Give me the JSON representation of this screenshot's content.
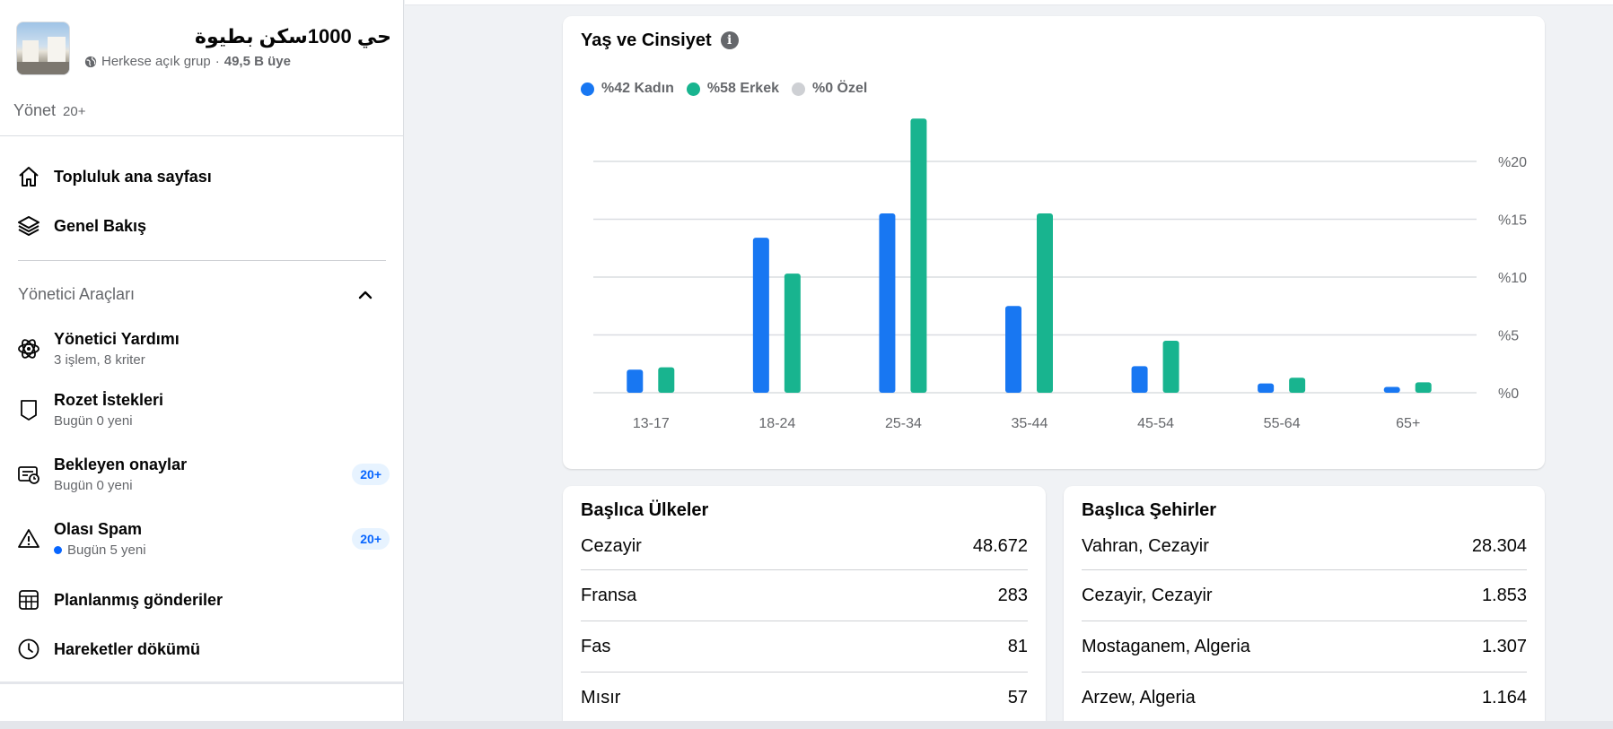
{
  "group": {
    "name": "حي 1000سكن بطيوة",
    "privacy": "Herkese açık grup",
    "separator": "·",
    "members": "49,5 B üye"
  },
  "manage": {
    "label": "Yönet",
    "count": "20+"
  },
  "nav": {
    "community_home": "Topluluk ana sayfası",
    "overview": "Genel Bakış"
  },
  "admin_tools": {
    "title": "Yönetici Araçları",
    "items": [
      {
        "label": "Yönetici Yardımı",
        "sub": "3 işlem, 8 kriter",
        "icon": "atom-icon"
      },
      {
        "label": "Rozet İstekleri",
        "sub": "Bugün 0 yeni",
        "icon": "badge-icon"
      },
      {
        "label": "Bekleyen onaylar",
        "sub": "Bugün 0 yeni",
        "badge": "20+",
        "icon": "pending-approvals-icon"
      },
      {
        "label": "Olası Spam",
        "sub": "Bugün 5 yeni",
        "badge": "20+",
        "icon": "warning-icon"
      },
      {
        "label": "Planlanmış gönderiler",
        "icon": "calendar-icon"
      },
      {
        "label": "Hareketler dökümü",
        "icon": "clock-icon"
      }
    ]
  },
  "age_gender": {
    "title": "Yaş ve Cinsiyet",
    "legend": [
      {
        "label": "%42 Kadın",
        "color": "#1877f2"
      },
      {
        "label": "%58 Erkek",
        "color": "#18b48f"
      },
      {
        "label": "%0 Özel",
        "color": "#ced0d4"
      }
    ]
  },
  "chart_data": {
    "type": "bar",
    "title": "Yaş ve Cinsiyet",
    "categories": [
      "13-17",
      "18-24",
      "25-34",
      "35-44",
      "45-54",
      "55-64",
      "65+"
    ],
    "series": [
      {
        "name": "%42 Kadın",
        "color": "#1877f2",
        "values": [
          2.0,
          13.4,
          15.5,
          7.5,
          2.3,
          0.8,
          0.5
        ]
      },
      {
        "name": "%58 Erkek",
        "color": "#18b48f",
        "values": [
          2.2,
          10.3,
          23.7,
          15.5,
          4.5,
          1.3,
          0.9
        ]
      }
    ],
    "y_ticks": [
      "%0",
      "%5",
      "%10",
      "%15",
      "%20"
    ],
    "y_tick_values": [
      0,
      5,
      10,
      15,
      20
    ],
    "ylim": [
      0,
      24
    ],
    "grid": true,
    "y_axis_position": "right"
  },
  "top_countries": {
    "title": "Başlıca Ülkeler",
    "rows": [
      {
        "name": "Cezayir",
        "value": "48.672"
      },
      {
        "name": "Fransa",
        "value": "283"
      },
      {
        "name": "Fas",
        "value": "81"
      },
      {
        "name": "Mısır",
        "value": "57"
      }
    ]
  },
  "top_cities": {
    "title": "Başlıca Şehirler",
    "rows": [
      {
        "name": "Vahran, Cezayir",
        "value": "28.304"
      },
      {
        "name": "Cezayir, Cezayir",
        "value": "1.853"
      },
      {
        "name": "Mostaganem, Algeria",
        "value": "1.307"
      },
      {
        "name": "Arzew, Algeria",
        "value": "1.164"
      }
    ]
  }
}
